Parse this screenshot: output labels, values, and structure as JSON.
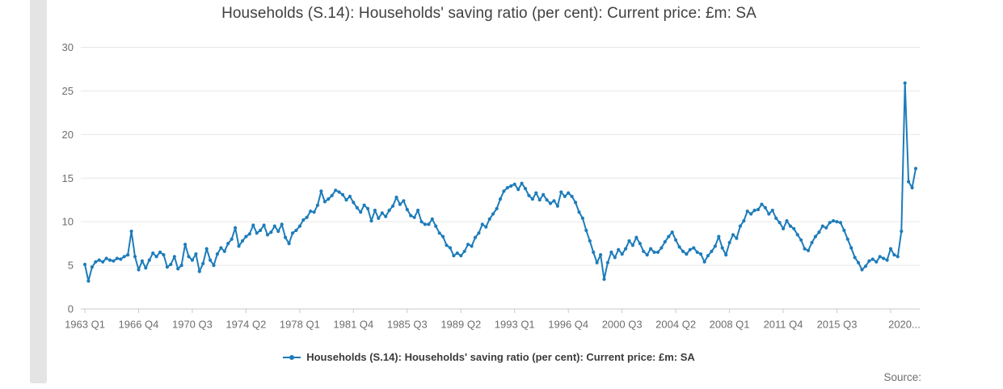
{
  "title": "Households (S.14): Households' saving ratio (per cent): Current price: £m: SA",
  "source_label": "Source:",
  "legend": {
    "label": "Households (S.14): Households' saving ratio (per cent): Current price: £m: SA"
  },
  "colors": {
    "line": "#1d7cba",
    "grid": "#e7e7e7",
    "axis": "#c9c9c9",
    "tick_text": "#6d6d6d",
    "title_text": "#414042",
    "scrollbar": "#e4e4e4"
  },
  "chart_data": {
    "type": "line",
    "title": "Households (S.14): Households' saving ratio (per cent): Current price: £m: SA",
    "xlabel": "",
    "ylabel": "",
    "ylim": [
      0,
      30
    ],
    "y_ticks": [
      0,
      5,
      10,
      15,
      20,
      25,
      30
    ],
    "grid": "horizontal",
    "legend_position": "bottom",
    "marker": "circle",
    "frequency": "quarterly",
    "x_start": "1963 Q1",
    "x_end": "2021 Q1",
    "x_tick_labels": [
      "1963 Q1",
      "1966 Q4",
      "1970 Q3",
      "1974 Q2",
      "1978 Q1",
      "1981 Q4",
      "1985 Q3",
      "1989 Q2",
      "1993 Q1",
      "1996 Q4",
      "2000 Q3",
      "2004 Q2",
      "2008 Q1",
      "2011 Q4",
      "2015 Q3",
      "2020..."
    ],
    "x_tick_indices": [
      0,
      15,
      30,
      45,
      60,
      75,
      90,
      105,
      120,
      135,
      150,
      165,
      180,
      195,
      210,
      225
    ],
    "series": [
      {
        "name": "Households (S.14): Households' saving ratio (per cent): Current price: £m: SA",
        "values": [
          5.1,
          3.2,
          4.8,
          5.4,
          5.6,
          5.4,
          5.8,
          5.6,
          5.5,
          5.8,
          5.7,
          6.0,
          6.2,
          8.9,
          6.0,
          4.5,
          5.5,
          4.7,
          5.6,
          6.4,
          6.0,
          6.5,
          6.2,
          4.8,
          5.1,
          6.0,
          4.6,
          5.0,
          7.4,
          6.0,
          5.6,
          6.3,
          4.3,
          5.2,
          6.9,
          5.6,
          5.0,
          6.3,
          7.0,
          6.6,
          7.5,
          8.0,
          9.3,
          7.2,
          7.8,
          8.3,
          8.6,
          9.6,
          8.7,
          9.0,
          9.6,
          8.5,
          8.8,
          9.5,
          8.9,
          9.7,
          8.2,
          7.5,
          8.7,
          9.0,
          9.5,
          10.2,
          10.5,
          11.2,
          11.1,
          11.9,
          13.5,
          12.3,
          12.6,
          13.0,
          13.6,
          13.4,
          13.1,
          12.5,
          12.9,
          12.2,
          11.6,
          11.1,
          11.9,
          11.5,
          10.1,
          11.3,
          10.4,
          11.0,
          10.6,
          11.3,
          11.8,
          12.8,
          12.0,
          12.4,
          11.4,
          10.7,
          10.5,
          11.3,
          10.0,
          9.7,
          9.7,
          10.3,
          9.5,
          8.7,
          8.3,
          7.3,
          7.0,
          6.1,
          6.4,
          6.1,
          6.6,
          7.4,
          7.2,
          8.2,
          8.7,
          9.7,
          9.4,
          10.3,
          10.9,
          11.5,
          12.6,
          13.5,
          13.9,
          14.1,
          14.3,
          13.7,
          14.4,
          13.8,
          13.0,
          12.6,
          13.3,
          12.5,
          13.1,
          12.5,
          12.1,
          12.4,
          11.8,
          13.4,
          12.9,
          13.3,
          12.9,
          12.2,
          11.1,
          10.4,
          9.0,
          7.8,
          6.5,
          5.3,
          6.2,
          3.4,
          5.3,
          6.5,
          5.9,
          6.8,
          6.3,
          6.9,
          7.8,
          7.3,
          8.2,
          7.5,
          6.6,
          6.2,
          6.9,
          6.5,
          6.5,
          7.0,
          7.7,
          8.3,
          8.8,
          7.9,
          7.1,
          6.6,
          6.3,
          6.8,
          7.0,
          6.5,
          6.3,
          5.4,
          6.1,
          6.6,
          7.2,
          8.3,
          7.0,
          6.2,
          7.6,
          8.5,
          8.1,
          9.5,
          10.1,
          11.2,
          10.9,
          11.3,
          11.4,
          12.0,
          11.6,
          10.9,
          11.3,
          10.4,
          9.9,
          9.2,
          10.1,
          9.5,
          9.2,
          8.5,
          7.9,
          6.9,
          6.7,
          7.6,
          8.3,
          8.8,
          9.5,
          9.3,
          9.9,
          10.1,
          10.0,
          9.9,
          9.0,
          8.0,
          7.0,
          5.9,
          5.3,
          4.5,
          4.9,
          5.5,
          5.7,
          5.4,
          6.0,
          5.8,
          5.6,
          6.9,
          6.2,
          6.0,
          8.9,
          25.9,
          14.6,
          13.9,
          16.1
        ]
      }
    ]
  }
}
